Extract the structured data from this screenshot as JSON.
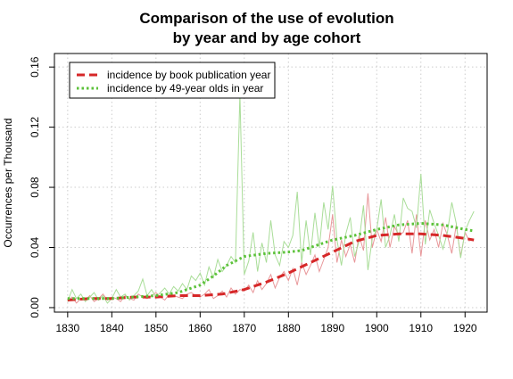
{
  "chart_data": {
    "type": "line",
    "title": [
      "Comparison of the use of evolution",
      "by year and by age cohort"
    ],
    "xlabel": "",
    "ylabel": "Occurrences per Thousand",
    "xlim": [
      1827,
      1925
    ],
    "ylim": [
      -0.003,
      0.169
    ],
    "xticks": [
      1830,
      1840,
      1850,
      1860,
      1870,
      1880,
      1890,
      1900,
      1910,
      1920
    ],
    "yticks": [
      0.0,
      0.04,
      0.08,
      0.12,
      0.16
    ],
    "ytick_labels": [
      "0.00",
      "0.04",
      "0.08",
      "0.12",
      "0.16"
    ],
    "grid": true,
    "legend_position": "top-left",
    "colors": {
      "book": "#d62728",
      "book_raw": "#e8979a",
      "cohort": "#5cc23a",
      "cohort_raw": "#a9dd98",
      "grid": "#cccccc"
    },
    "series": [
      {
        "name": "incidence by book publication year",
        "style": "dashed",
        "x": [
          1830,
          1835,
          1840,
          1845,
          1850,
          1855,
          1860,
          1865,
          1870,
          1875,
          1880,
          1885,
          1890,
          1895,
          1900,
          1905,
          1910,
          1915,
          1920,
          1922
        ],
        "y": [
          0.005,
          0.006,
          0.006,
          0.007,
          0.007,
          0.008,
          0.008,
          0.009,
          0.012,
          0.017,
          0.023,
          0.03,
          0.037,
          0.044,
          0.048,
          0.049,
          0.049,
          0.048,
          0.046,
          0.045
        ]
      },
      {
        "name": "incidence by 49-year olds in year",
        "style": "dotted",
        "x": [
          1830,
          1835,
          1840,
          1845,
          1850,
          1855,
          1860,
          1863,
          1866,
          1870,
          1875,
          1880,
          1883,
          1886,
          1890,
          1895,
          1900,
          1905,
          1910,
          1915,
          1920,
          1922
        ],
        "y": [
          0.006,
          0.006,
          0.006,
          0.007,
          0.008,
          0.01,
          0.015,
          0.021,
          0.028,
          0.034,
          0.036,
          0.037,
          0.038,
          0.041,
          0.045,
          0.048,
          0.052,
          0.055,
          0.056,
          0.055,
          0.052,
          0.051
        ]
      }
    ],
    "raw_series": [
      {
        "ref": "book",
        "x": [
          1830,
          1831,
          1832,
          1833,
          1834,
          1835,
          1836,
          1837,
          1838,
          1839,
          1840,
          1841,
          1842,
          1843,
          1844,
          1845,
          1846,
          1847,
          1848,
          1849,
          1850,
          1851,
          1852,
          1853,
          1854,
          1855,
          1856,
          1857,
          1858,
          1859,
          1860,
          1861,
          1862,
          1863,
          1864,
          1865,
          1866,
          1867,
          1868,
          1869,
          1870,
          1871,
          1872,
          1873,
          1874,
          1875,
          1876,
          1877,
          1878,
          1879,
          1880,
          1881,
          1882,
          1883,
          1884,
          1885,
          1886,
          1887,
          1888,
          1889,
          1890,
          1891,
          1892,
          1893,
          1894,
          1895,
          1896,
          1897,
          1898,
          1899,
          1900,
          1901,
          1902,
          1903,
          1904,
          1905,
          1906,
          1907,
          1908,
          1909,
          1910,
          1911,
          1912,
          1913,
          1914,
          1915,
          1916,
          1917,
          1918,
          1919,
          1920,
          1921
        ],
        "y": [
          0.004,
          0.007,
          0.003,
          0.006,
          0.005,
          0.008,
          0.004,
          0.006,
          0.009,
          0.005,
          0.007,
          0.006,
          0.004,
          0.008,
          0.006,
          0.005,
          0.009,
          0.007,
          0.006,
          0.008,
          0.01,
          0.007,
          0.005,
          0.009,
          0.008,
          0.007,
          0.006,
          0.009,
          0.01,
          0.008,
          0.007,
          0.009,
          0.012,
          0.006,
          0.008,
          0.011,
          0.007,
          0.013,
          0.009,
          0.012,
          0.011,
          0.015,
          0.01,
          0.018,
          0.012,
          0.016,
          0.022,
          0.013,
          0.02,
          0.024,
          0.018,
          0.026,
          0.015,
          0.03,
          0.022,
          0.028,
          0.035,
          0.024,
          0.032,
          0.04,
          0.062,
          0.03,
          0.045,
          0.034,
          0.042,
          0.03,
          0.048,
          0.038,
          0.076,
          0.04,
          0.052,
          0.044,
          0.06,
          0.04,
          0.054,
          0.048,
          0.05,
          0.058,
          0.036,
          0.062,
          0.034,
          0.058,
          0.045,
          0.052,
          0.04,
          0.056,
          0.048,
          0.036,
          0.055,
          0.034,
          0.05,
          0.044
        ]
      },
      {
        "ref": "cohort",
        "x": [
          1830,
          1831,
          1832,
          1833,
          1834,
          1835,
          1836,
          1837,
          1838,
          1839,
          1840,
          1841,
          1842,
          1843,
          1844,
          1845,
          1846,
          1847,
          1848,
          1849,
          1850,
          1851,
          1852,
          1853,
          1854,
          1855,
          1856,
          1857,
          1858,
          1859,
          1860,
          1861,
          1862,
          1863,
          1864,
          1865,
          1866,
          1867,
          1868,
          1869,
          1870,
          1871,
          1872,
          1873,
          1874,
          1875,
          1876,
          1877,
          1878,
          1879,
          1880,
          1881,
          1882,
          1883,
          1884,
          1885,
          1886,
          1887,
          1888,
          1889,
          1890,
          1891,
          1892,
          1893,
          1894,
          1895,
          1896,
          1897,
          1898,
          1899,
          1900,
          1901,
          1902,
          1903,
          1904,
          1905,
          1906,
          1907,
          1908,
          1909,
          1910,
          1911,
          1912,
          1913,
          1914,
          1915,
          1916,
          1917,
          1918,
          1919,
          1920,
          1921,
          1922
        ],
        "y": [
          0.004,
          0.012,
          0.006,
          0.009,
          0.004,
          0.007,
          0.01,
          0.005,
          0.008,
          0.003,
          0.006,
          0.012,
          0.007,
          0.009,
          0.005,
          0.008,
          0.011,
          0.019,
          0.008,
          0.012,
          0.007,
          0.01,
          0.013,
          0.009,
          0.014,
          0.011,
          0.016,
          0.012,
          0.021,
          0.018,
          0.023,
          0.015,
          0.027,
          0.02,
          0.032,
          0.024,
          0.028,
          0.034,
          0.03,
          0.142,
          0.022,
          0.031,
          0.05,
          0.024,
          0.043,
          0.03,
          0.058,
          0.035,
          0.028,
          0.044,
          0.04,
          0.048,
          0.077,
          0.03,
          0.058,
          0.035,
          0.063,
          0.04,
          0.07,
          0.052,
          0.081,
          0.045,
          0.028,
          0.049,
          0.06,
          0.034,
          0.044,
          0.068,
          0.025,
          0.046,
          0.052,
          0.072,
          0.04,
          0.048,
          0.062,
          0.044,
          0.073,
          0.066,
          0.064,
          0.053,
          0.089,
          0.042,
          0.065,
          0.056,
          0.048,
          0.039,
          0.05,
          0.07,
          0.056,
          0.033,
          0.051,
          0.058,
          0.064
        ]
      }
    ]
  }
}
